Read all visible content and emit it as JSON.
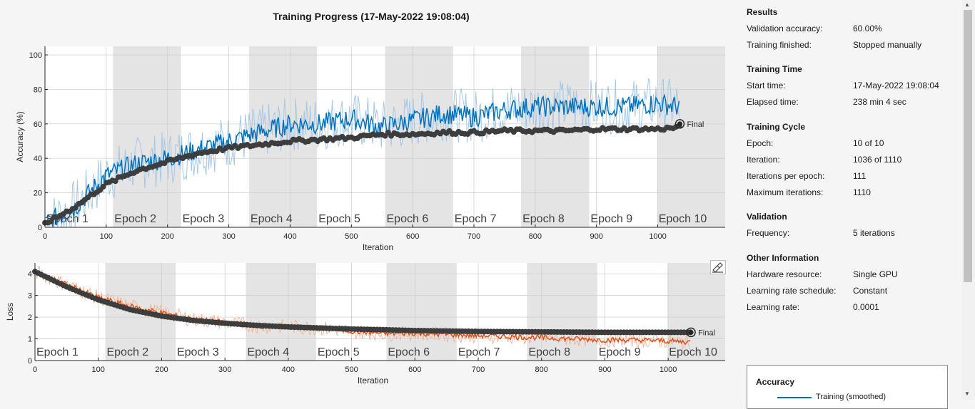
{
  "title": "Training Progress (17-May-2022 19:08:04)",
  "accuracy_chart": {
    "ylabel": "Accuracy (%)",
    "xlabel": "Iteration",
    "xlim": [
      0,
      1110
    ],
    "ylim": [
      0,
      105
    ],
    "xticks": [
      0,
      100,
      200,
      300,
      400,
      500,
      600,
      700,
      800,
      900,
      1000
    ],
    "yticks": [
      0,
      20,
      40,
      60,
      80,
      100
    ],
    "final_label": "Final"
  },
  "loss_chart": {
    "ylabel": "Loss",
    "xlabel": "Iteration",
    "xlim": [
      0,
      1090
    ],
    "ylim": [
      0,
      4.5
    ],
    "xticks": [
      0,
      100,
      200,
      300,
      400,
      500,
      600,
      700,
      800,
      900,
      1000
    ],
    "yticks": [
      0,
      1,
      2,
      3,
      4
    ],
    "final_label": "Final"
  },
  "epochs": [
    "Epoch 1",
    "Epoch 2",
    "Epoch 3",
    "Epoch 4",
    "Epoch 5",
    "Epoch 6",
    "Epoch 7",
    "Epoch 8",
    "Epoch 9",
    "Epoch 10"
  ],
  "colors": {
    "accuracy_smoothed": "#0072bd",
    "accuracy_raw": "#a6c8e6",
    "loss_smoothed": "#d95319",
    "loss_raw": "#f1b79e",
    "validation": "#3d3d3d",
    "epoch_shade": "#e4e4e4"
  },
  "chart_data": [
    {
      "type": "line",
      "title": "",
      "xlabel": "Iteration",
      "ylabel": "Accuracy (%)",
      "xlim": [
        0,
        1110
      ],
      "ylim": [
        0,
        105
      ],
      "iterations_per_epoch": 111,
      "last_iteration": 1036,
      "series": [
        {
          "key": "training_smoothed",
          "x": [
            0,
            50,
            100,
            150,
            200,
            250,
            300,
            350,
            400,
            450,
            500,
            550,
            600,
            650,
            700,
            750,
            800,
            850,
            900,
            950,
            1000,
            1036
          ],
          "y": [
            2,
            12,
            30,
            37,
            40,
            45,
            50,
            55,
            60,
            60,
            63,
            58,
            62,
            66,
            64,
            68,
            70,
            70,
            70,
            70,
            72,
            70
          ]
        },
        {
          "key": "training_raw",
          "x": [
            0,
            50,
            100,
            150,
            200,
            250,
            300,
            350,
            400,
            450,
            500,
            550,
            600,
            650,
            700,
            750,
            800,
            850,
            900,
            950,
            1000,
            1036
          ],
          "y": [
            2,
            12,
            30,
            37,
            40,
            45,
            50,
            55,
            60,
            60,
            63,
            58,
            62,
            66,
            64,
            68,
            70,
            70,
            70,
            70,
            72,
            70
          ]
        },
        {
          "key": "validation",
          "x": [
            0,
            50,
            100,
            150,
            200,
            250,
            300,
            350,
            400,
            450,
            500,
            550,
            600,
            650,
            700,
            750,
            800,
            850,
            900,
            950,
            1000,
            1036
          ],
          "y": [
            2,
            12,
            25,
            33,
            38,
            43,
            46,
            48,
            50,
            51,
            52,
            54,
            54,
            55,
            55,
            56,
            56,
            56,
            57,
            57,
            57,
            58
          ]
        }
      ],
      "final_point": {
        "x": 1036,
        "y": 60
      }
    },
    {
      "type": "line",
      "title": "",
      "xlabel": "Iteration",
      "ylabel": "Loss",
      "xlim": [
        0,
        1090
      ],
      "ylim": [
        0,
        4.5
      ],
      "series": [
        {
          "key": "training_smoothed",
          "x": [
            0,
            50,
            100,
            150,
            200,
            250,
            300,
            350,
            400,
            450,
            500,
            550,
            600,
            650,
            700,
            750,
            800,
            850,
            900,
            950,
            1000,
            1036
          ],
          "y": [
            4.1,
            3.5,
            2.9,
            2.5,
            2.2,
            1.9,
            1.75,
            1.6,
            1.55,
            1.5,
            1.35,
            1.25,
            1.25,
            1.2,
            1.15,
            1.1,
            1.05,
            1.0,
            0.95,
            0.95,
            0.9,
            0.85
          ]
        },
        {
          "key": "validation",
          "x": [
            0,
            50,
            100,
            150,
            200,
            250,
            300,
            350,
            400,
            450,
            500,
            550,
            600,
            650,
            700,
            750,
            800,
            850,
            900,
            950,
            1000,
            1036
          ],
          "y": [
            4.1,
            3.4,
            2.8,
            2.35,
            2.05,
            1.85,
            1.72,
            1.62,
            1.55,
            1.5,
            1.45,
            1.42,
            1.38,
            1.36,
            1.34,
            1.33,
            1.32,
            1.31,
            1.3,
            1.3,
            1.3,
            1.3
          ]
        }
      ],
      "final_point": {
        "x": 1036,
        "y": 1.3
      }
    }
  ],
  "side": {
    "results": {
      "heading": "Results",
      "rows": [
        {
          "k": "Validation accuracy:",
          "v": "60.00%"
        },
        {
          "k": "Training finished:",
          "v": "Stopped manually"
        }
      ]
    },
    "time": {
      "heading": "Training Time",
      "rows": [
        {
          "k": "Start time:",
          "v": "17-May-2022 19:08:04"
        },
        {
          "k": "Elapsed time:",
          "v": "238 min 4 sec"
        }
      ]
    },
    "cycle": {
      "heading": "Training Cycle",
      "rows": [
        {
          "k": "Epoch:",
          "v": "10 of 10"
        },
        {
          "k": "Iteration:",
          "v": "1036 of 1110"
        },
        {
          "k": "Iterations per epoch:",
          "v": "111"
        },
        {
          "k": "Maximum iterations:",
          "v": "1110"
        }
      ]
    },
    "validation": {
      "heading": "Validation",
      "rows": [
        {
          "k": "Frequency:",
          "v": "5 iterations"
        }
      ]
    },
    "other": {
      "heading": "Other Information",
      "rows": [
        {
          "k": "Hardware resource:",
          "v": "Single GPU"
        },
        {
          "k": "Learning rate schedule:",
          "v": "Constant"
        },
        {
          "k": "Learning rate:",
          "v": "0.0001"
        }
      ]
    },
    "legend": {
      "title": "Accuracy",
      "item": "Training (smoothed)"
    }
  }
}
